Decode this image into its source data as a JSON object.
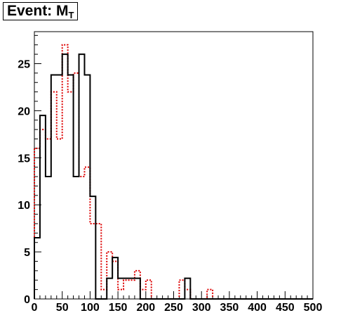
{
  "chart_data": {
    "type": "histogram",
    "title": "Event: M",
    "title_subscript": "T",
    "xlabel": "",
    "ylabel": "",
    "xlim": [
      0,
      500
    ],
    "ylim": [
      0,
      28.4
    ],
    "x_ticks": [
      0,
      50,
      100,
      150,
      200,
      250,
      300,
      350,
      400,
      450,
      500
    ],
    "y_ticks": [
      0,
      5,
      10,
      15,
      20,
      25
    ],
    "bin_width": 10,
    "grid": false,
    "legend": "none",
    "series": [
      {
        "color": "#000000",
        "style": "solid",
        "values": [
          6.5,
          19.5,
          13,
          23.8,
          23.8,
          26,
          23.8,
          13,
          26,
          23.8,
          10.9,
          0,
          0,
          2.2,
          4.4,
          2.2,
          2.2,
          2.2,
          2.2,
          0,
          0,
          0,
          0,
          0,
          0,
          0,
          0,
          2.2,
          0,
          0,
          0,
          0,
          0,
          0,
          0,
          0,
          0,
          0,
          0,
          0,
          0,
          0,
          0,
          0,
          0,
          0,
          0,
          0,
          0,
          0
        ]
      },
      {
        "color": "#dd0000",
        "style": "dotted",
        "values": [
          16,
          18,
          17,
          22,
          17,
          27,
          22,
          24,
          13,
          14,
          8,
          8,
          1,
          5,
          4,
          1,
          2,
          2,
          3,
          1,
          2,
          0,
          0,
          0,
          0,
          0,
          2,
          1,
          0,
          0,
          0,
          1,
          0,
          0,
          0,
          0,
          0,
          0,
          0,
          0,
          0,
          0,
          0,
          0,
          0,
          0,
          0,
          0,
          0,
          0
        ]
      }
    ]
  }
}
